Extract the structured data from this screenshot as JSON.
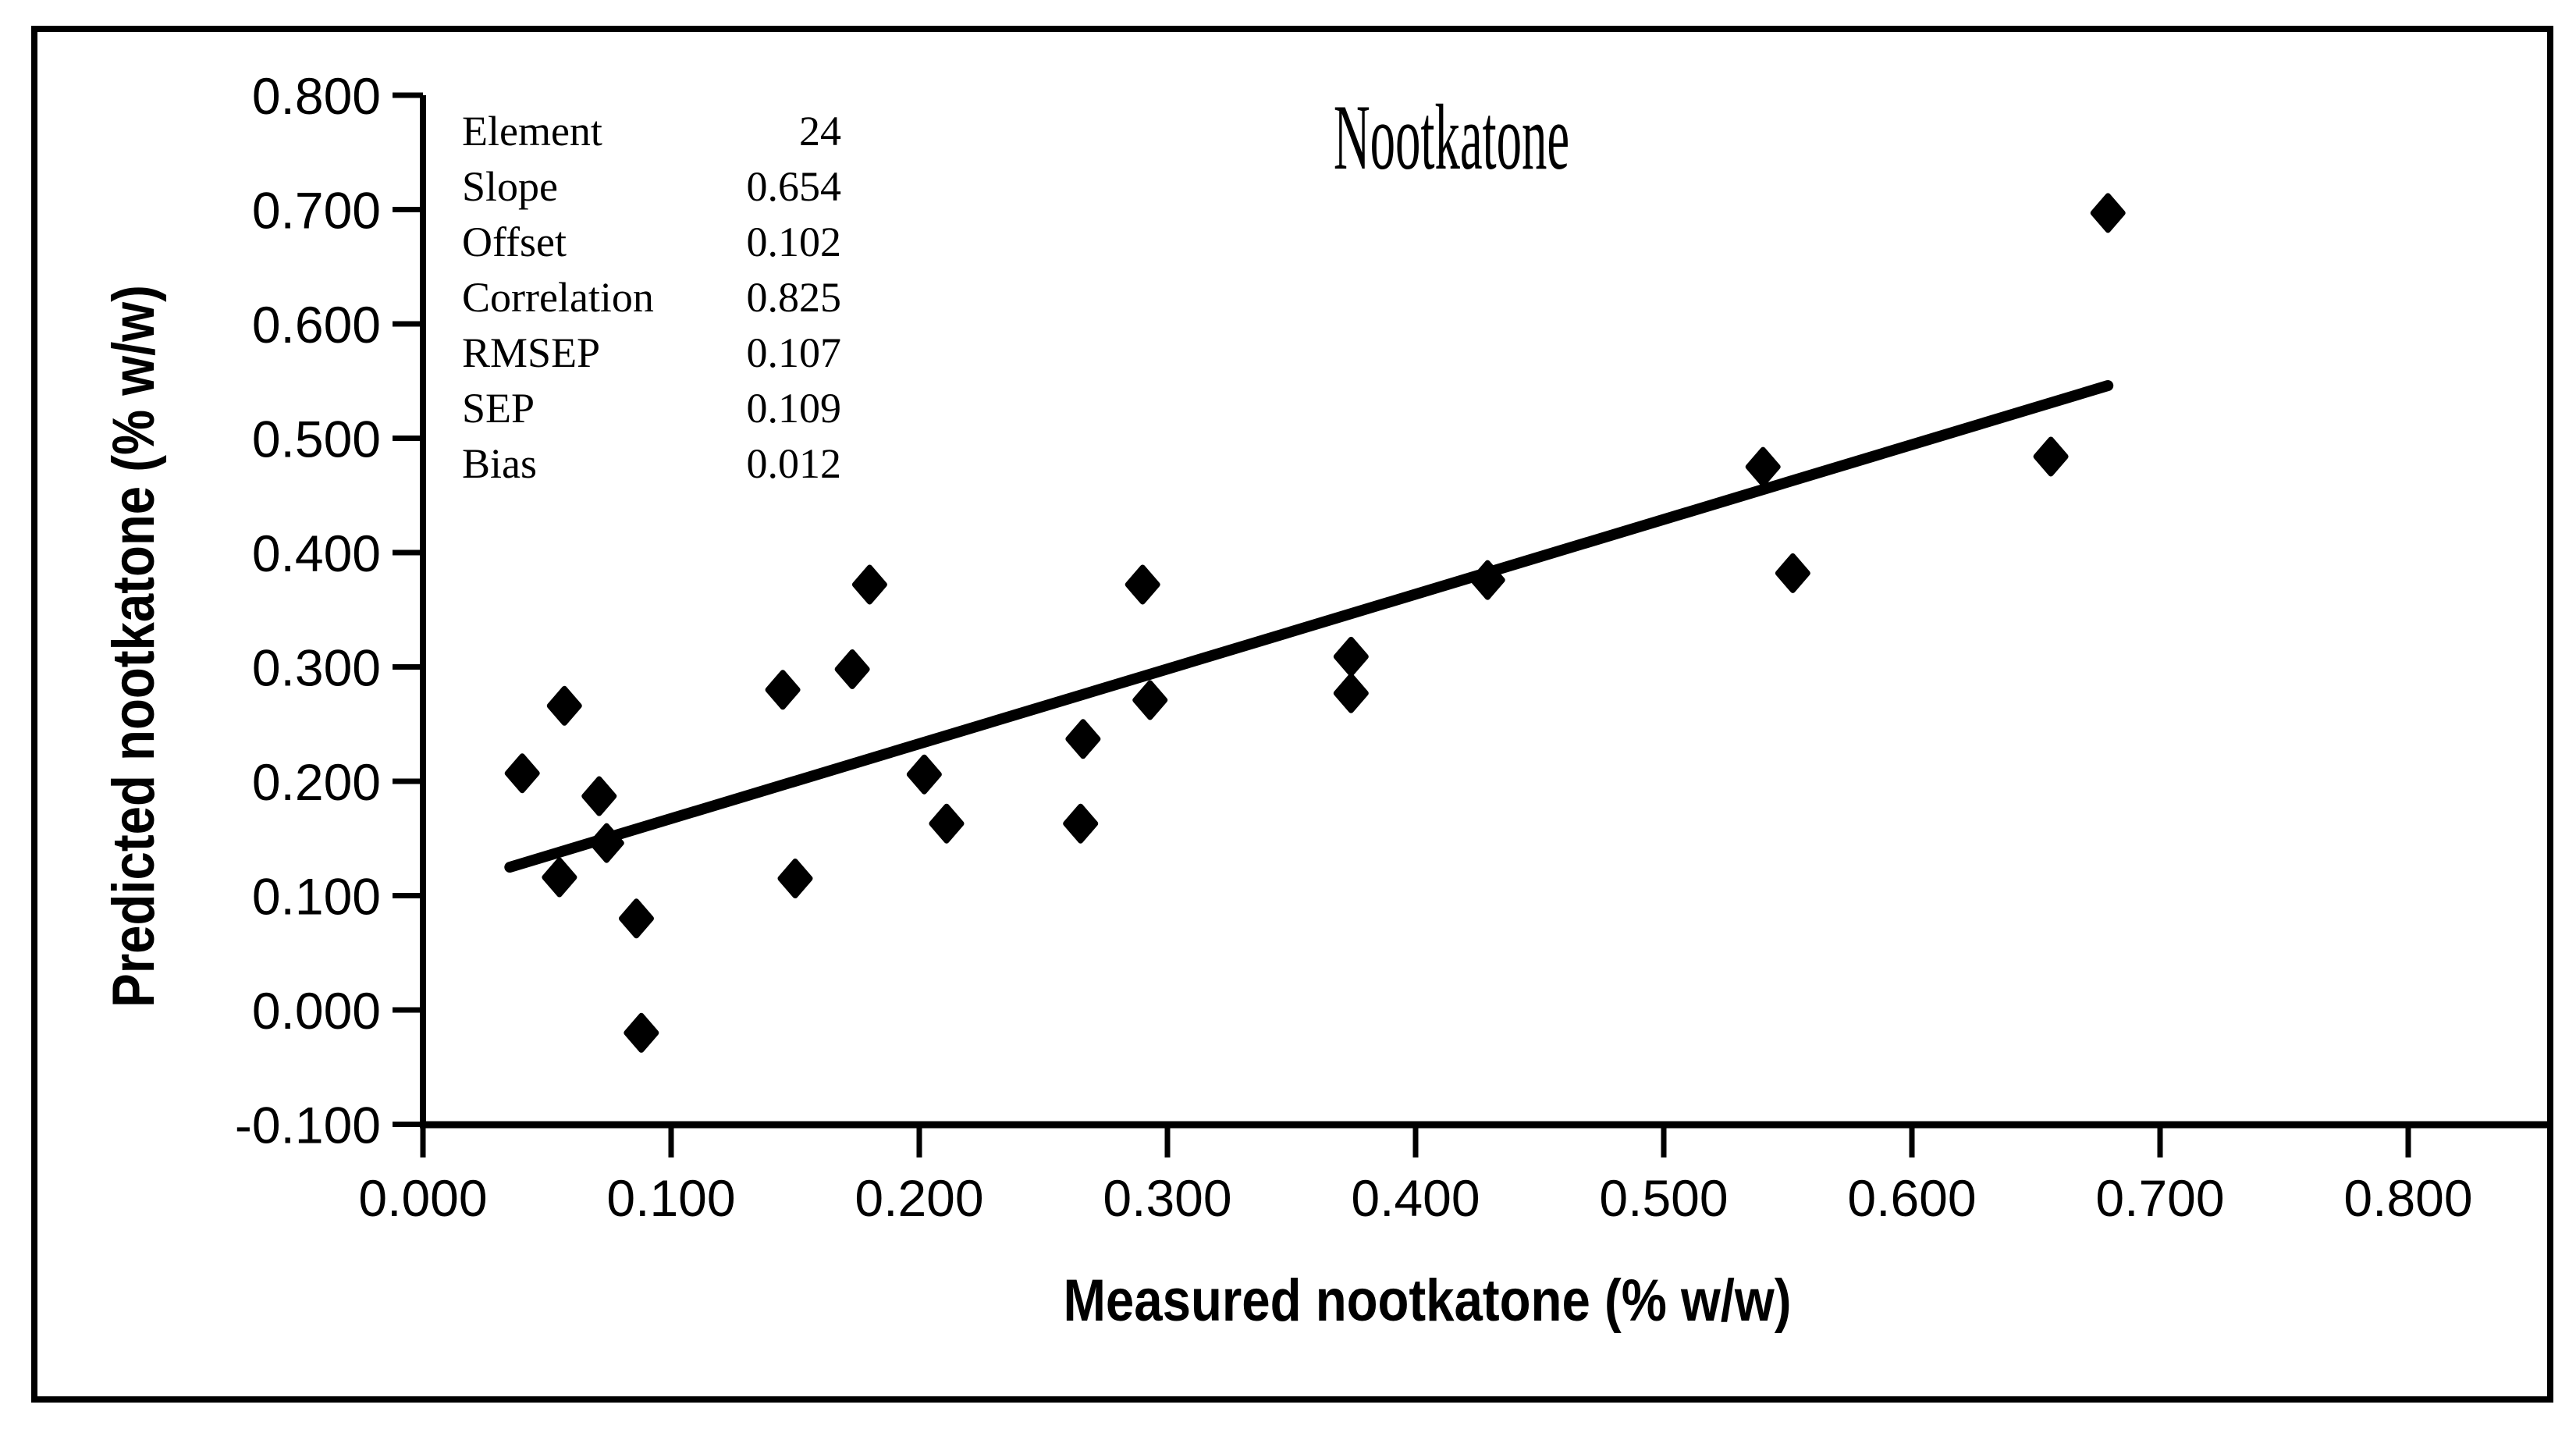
{
  "chart_data": {
    "type": "scatter",
    "title": "Nootkatone",
    "xlabel": "Measured nootkatone (% w/w)",
    "ylabel": "Predicted nootkatone  (% w/w)",
    "xlim": [
      0.0,
      0.8
    ],
    "ylim": [
      -0.1,
      0.8
    ],
    "x_ticks": [
      "0.000",
      "0.100",
      "0.200",
      "0.300",
      "0.400",
      "0.500",
      "0.600",
      "0.700",
      "0.800"
    ],
    "y_ticks": [
      "0.800",
      "0.700",
      "0.600",
      "0.500",
      "0.400",
      "0.300",
      "0.200",
      "0.100",
      "0.000",
      "-0.100"
    ],
    "grid": false,
    "legend": "none",
    "marker": "diamond",
    "marker_color": "#000000",
    "line_color": "#000000",
    "points": [
      [
        0.04,
        0.207
      ],
      [
        0.055,
        0.116
      ],
      [
        0.057,
        0.266
      ],
      [
        0.071,
        0.187
      ],
      [
        0.074,
        0.146
      ],
      [
        0.086,
        0.08
      ],
      [
        0.088,
        -0.02
      ],
      [
        0.145,
        0.28
      ],
      [
        0.15,
        0.115
      ],
      [
        0.173,
        0.298
      ],
      [
        0.18,
        0.372
      ],
      [
        0.202,
        0.206
      ],
      [
        0.211,
        0.163
      ],
      [
        0.265,
        0.163
      ],
      [
        0.266,
        0.237
      ],
      [
        0.29,
        0.372
      ],
      [
        0.293,
        0.271
      ],
      [
        0.374,
        0.277
      ],
      [
        0.374,
        0.309
      ],
      [
        0.429,
        0.376
      ],
      [
        0.54,
        0.475
      ],
      [
        0.552,
        0.382
      ],
      [
        0.656,
        0.484
      ],
      [
        0.679,
        0.697
      ]
    ],
    "regression_line": {
      "slope": 0.654,
      "offset": 0.102,
      "x_start": 0.035,
      "x_end": 0.679
    }
  },
  "stats_box": {
    "rows": [
      {
        "label": "Element",
        "value": "24"
      },
      {
        "label": "Slope",
        "value": "0.654"
      },
      {
        "label": "Offset",
        "value": "0.102"
      },
      {
        "label": "Correlation",
        "value": "0.825"
      },
      {
        "label": "RMSEP",
        "value": "0.107"
      },
      {
        "label": "SEP",
        "value": "0.109"
      },
      {
        "label": "Bias",
        "value": "0.012"
      }
    ]
  }
}
